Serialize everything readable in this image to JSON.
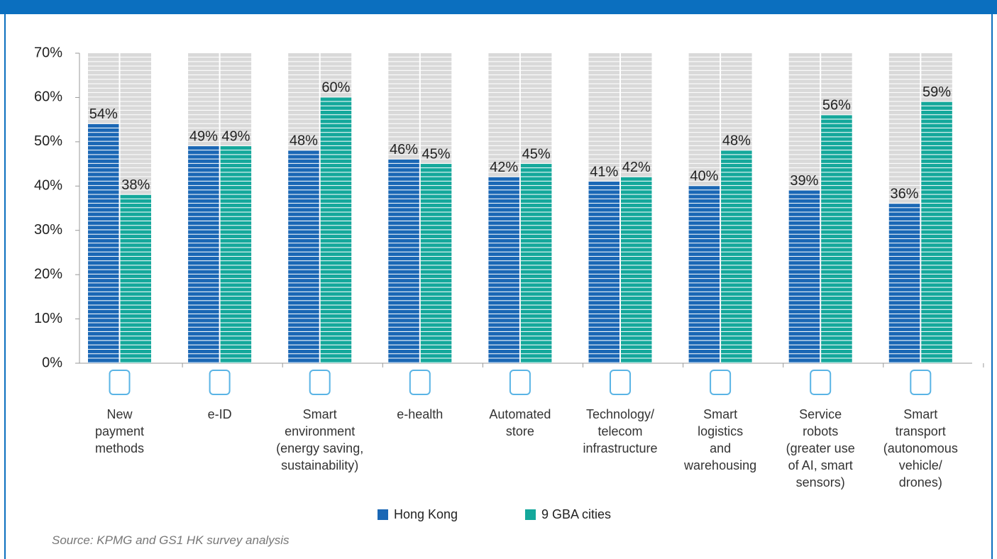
{
  "chart_data": {
    "type": "bar",
    "categories": [
      "New\npayment\nmethods",
      "e-ID",
      "Smart\nenvironment\n(energy saving,\nsustainability)",
      "e-health",
      "Automated\nstore",
      "Technology/\ntelecom\ninfrastructure",
      "Smart\nlogistics\nand\nwarehousing",
      "Service\nrobots\n(greater use\nof AI, smart\nsensors)",
      "Smart\ntransport\n(autonomous\nvehicle/\ndrones)"
    ],
    "series": [
      {
        "name": "Hong Kong",
        "color": "#1a67b5",
        "values": [
          54,
          49,
          48,
          46,
          42,
          41,
          40,
          39,
          36
        ],
        "value_labels": [
          "54%",
          "49%",
          "48%",
          "46%",
          "42%",
          "41%",
          "40%",
          "39%",
          "36%"
        ]
      },
      {
        "name": "9 GBA cities",
        "color": "#14a89b",
        "values": [
          38,
          49,
          60,
          45,
          45,
          42,
          48,
          56,
          59
        ],
        "value_labels": [
          "38%",
          "49%",
          "60%",
          "45%",
          "45%",
          "42%",
          "48%",
          "56%",
          "59%"
        ]
      }
    ],
    "ylim": [
      0,
      70
    ],
    "yticks": [
      {
        "value": 0,
        "label": "0%"
      },
      {
        "value": 10,
        "label": "10%"
      },
      {
        "value": 20,
        "label": "20%"
      },
      {
        "value": 30,
        "label": "30%"
      },
      {
        "value": 40,
        "label": "40%"
      },
      {
        "value": 50,
        "label": "50%"
      },
      {
        "value": 60,
        "label": "60%"
      },
      {
        "value": 70,
        "label": "70%"
      }
    ],
    "source": "Source: KPMG and GS1 HK survey analysis"
  }
}
